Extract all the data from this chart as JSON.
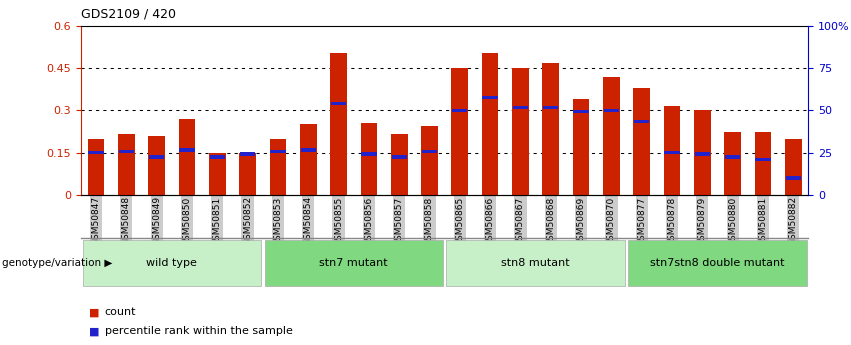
{
  "title": "GDS2109 / 420",
  "samples": [
    "GSM50847",
    "GSM50848",
    "GSM50849",
    "GSM50850",
    "GSM50851",
    "GSM50852",
    "GSM50853",
    "GSM50854",
    "GSM50855",
    "GSM50856",
    "GSM50857",
    "GSM50858",
    "GSM50865",
    "GSM50866",
    "GSM50867",
    "GSM50868",
    "GSM50869",
    "GSM50870",
    "GSM50877",
    "GSM50878",
    "GSM50879",
    "GSM50880",
    "GSM50881",
    "GSM50882"
  ],
  "count_values": [
    0.2,
    0.215,
    0.21,
    0.27,
    0.148,
    0.148,
    0.2,
    0.25,
    0.505,
    0.255,
    0.215,
    0.245,
    0.45,
    0.505,
    0.45,
    0.47,
    0.34,
    0.42,
    0.38,
    0.315,
    0.3,
    0.225,
    0.225,
    0.2
  ],
  "percentile_values": [
    0.15,
    0.155,
    0.135,
    0.16,
    0.135,
    0.145,
    0.155,
    0.16,
    0.325,
    0.145,
    0.135,
    0.155,
    0.3,
    0.345,
    0.31,
    0.31,
    0.295,
    0.3,
    0.26,
    0.15,
    0.145,
    0.135,
    0.125,
    0.06
  ],
  "groups": [
    {
      "label": "wild type",
      "start": 0,
      "end": 6,
      "color": "#c8f0c8"
    },
    {
      "label": "stn7 mutant",
      "start": 6,
      "end": 12,
      "color": "#80d880"
    },
    {
      "label": "stn8 mutant",
      "start": 12,
      "end": 18,
      "color": "#c8f0c8"
    },
    {
      "label": "stn7stn8 double mutant",
      "start": 18,
      "end": 24,
      "color": "#80d880"
    }
  ],
  "ylim_left": [
    0,
    0.6
  ],
  "ylim_right": [
    0,
    1.0
  ],
  "yticks_left": [
    0,
    0.15,
    0.3,
    0.45,
    0.6
  ],
  "ytick_labels_left": [
    "0",
    "0.15",
    "0.3",
    "0.45",
    "0.6"
  ],
  "yticks_right": [
    0.0,
    0.25,
    0.5,
    0.75,
    1.0
  ],
  "ytick_labels_right": [
    "0",
    "25",
    "50",
    "75",
    "100%"
  ],
  "grid_lines": [
    0.15,
    0.3,
    0.45
  ],
  "bar_color_red": "#cc2200",
  "bar_color_blue": "#2222cc",
  "bar_width": 0.55,
  "bg_color": "#ffffff",
  "tick_label_color_left": "#cc2200",
  "tick_label_color_right": "#0000cc",
  "legend_count": "count",
  "legend_percentile": "percentile rank within the sample",
  "genotype_label": "genotype/variation"
}
